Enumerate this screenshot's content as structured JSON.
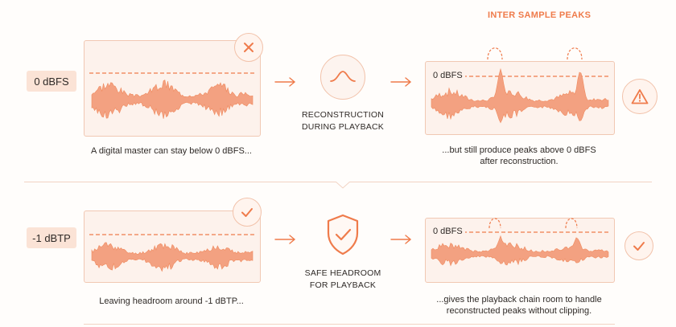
{
  "colors": {
    "accent": "#ef7b4b",
    "panel_bg": "#fdf2ec",
    "panel_border": "#f1c8b3",
    "tag_bg": "#fbe3d6"
  },
  "top": {
    "level_tag": "0 dBFS",
    "status_icon": "cross-icon",
    "process_icon": "reconstruction-curve-icon",
    "process_label_line1": "RECONSTRUCTION",
    "process_label_line2": "DURING PLAYBACK",
    "peaks_title": "INTER SAMPLE PEAKS",
    "panel_label": "0 dBFS",
    "warning_icon": "warning-triangle-icon",
    "caption_left": "A digital master can stay below 0 dBFS...",
    "caption_right_line1": "...but still produce peaks above 0 dBFS",
    "caption_right_line2": "after reconstruction."
  },
  "bottom": {
    "level_tag": "-1 dBTP",
    "status_icon": "check-icon",
    "process_icon": "shield-check-icon",
    "process_label_line1": "SAFE HEADROOM",
    "process_label_line2": "FOR PLAYBACK",
    "panel_label": "0 dBFS",
    "ok_icon": "check-circle-icon",
    "caption_left": "Leaving headroom around -1 dBTP...",
    "caption_right_line1": "...gives the playback chain room to handle",
    "caption_right_line2": "reconstructed peaks without clipping."
  }
}
